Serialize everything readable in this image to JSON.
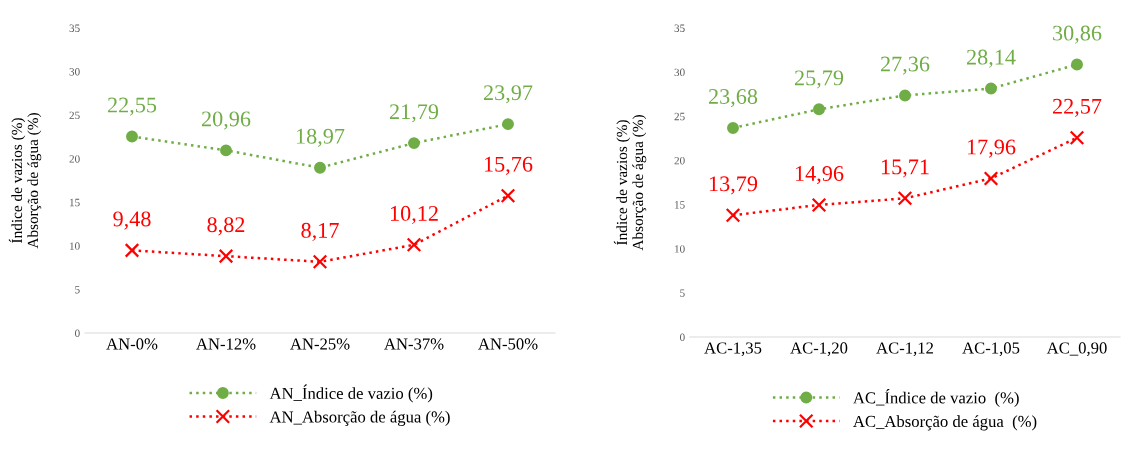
{
  "chart_data": [
    {
      "type": "line",
      "ylabel": "Índice de vazios (%)\nAbsorção de água (%)",
      "categories": [
        "AN-0%",
        "AN-12%",
        "AN-25%",
        "AN-37%",
        "AN-50%"
      ],
      "ylim": [
        0,
        35
      ],
      "yticks": [
        0,
        5,
        10,
        15,
        20,
        25,
        30,
        35
      ],
      "grid": false,
      "legend": "bottom",
      "line_style": "dotted",
      "series": [
        {
          "name": "AN_Índice de vazio (%)",
          "color": "#70ad47",
          "marker": "circle",
          "values": [
            22.55,
            20.96,
            18.97,
            21.79,
            23.97
          ],
          "value_labels": [
            "22,55",
            "20,96",
            "18,97",
            "21,79",
            "23,97"
          ]
        },
        {
          "name": "AN_Absorção de água (%)",
          "color": "#ff0000",
          "marker": "cross",
          "values": [
            9.48,
            8.82,
            8.17,
            10.12,
            15.76
          ],
          "value_labels": [
            "9,48",
            "8,82",
            "8,17",
            "10,12",
            "15,76"
          ]
        }
      ]
    },
    {
      "type": "line",
      "ylabel": "Índice de vazios (%)\nAbsorção de água (%)",
      "categories": [
        "AC-1,35",
        "AC-1,20",
        "AC-1,12",
        "AC-1,05",
        "AC_0,90"
      ],
      "ylim": [
        0,
        35
      ],
      "yticks": [
        0,
        5,
        10,
        15,
        20,
        25,
        30,
        35
      ],
      "grid": false,
      "legend": "bottom",
      "line_style": "dotted",
      "series": [
        {
          "name": "AC_Índice de vazio  (%)",
          "color": "#70ad47",
          "marker": "circle",
          "values": [
            23.68,
            25.79,
            27.36,
            28.14,
            30.86
          ],
          "value_labels": [
            "23,68",
            "25,79",
            "27,36",
            "28,14",
            "30,86"
          ]
        },
        {
          "name": "AC_Absorção de água  (%)",
          "color": "#ff0000",
          "marker": "cross",
          "values": [
            13.79,
            14.96,
            15.71,
            17.96,
            22.57
          ],
          "value_labels": [
            "13,79",
            "14,96",
            "15,71",
            "17,96",
            "22,57"
          ]
        }
      ]
    }
  ]
}
